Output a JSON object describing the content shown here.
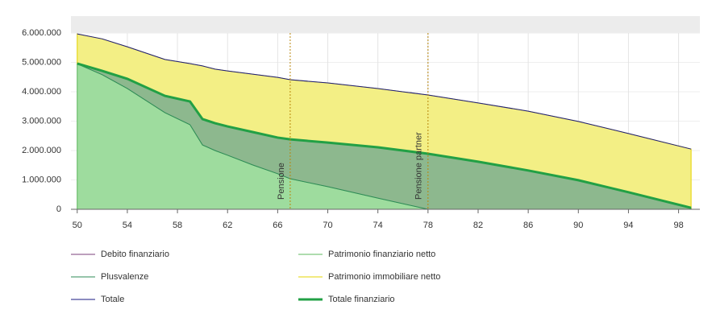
{
  "chart_data": {
    "type": "area",
    "x": [
      50,
      52,
      54,
      57,
      59,
      60,
      61,
      62,
      64,
      66,
      67,
      70,
      74,
      78,
      82,
      86,
      90,
      94,
      99
    ],
    "xlim": [
      49.5,
      99.7
    ],
    "xticks": [
      50,
      54,
      58,
      62,
      66,
      70,
      74,
      78,
      82,
      86,
      90,
      94,
      98
    ],
    "ylim": [
      0,
      6000000
    ],
    "yticks": [
      0,
      {
        "value": 1000000,
        "label": "1.000.000"
      },
      {
        "value": 2000000,
        "label": "2.000.000"
      },
      {
        "value": 3000000,
        "label": "3.000.000"
      },
      {
        "value": 4000000,
        "label": "4.000.000"
      },
      {
        "value": 5000000,
        "label": "5.000.000"
      },
      {
        "value": 6000000,
        "label": "6.000.000"
      }
    ],
    "grid": true,
    "series": [
      {
        "name": "Debito finanziario",
        "color": "#7b3f7b",
        "kind": "line",
        "width": 1,
        "values": [
          0,
          0,
          0,
          0,
          0,
          0,
          0,
          0,
          0,
          0,
          0,
          0,
          0,
          0,
          0,
          0,
          0,
          0,
          0
        ]
      },
      {
        "name": "Patrimonio finanziario netto",
        "color": "#5cb85c",
        "fill": "#9edc9e",
        "kind": "area",
        "width": 1,
        "values": [
          4950000,
          4580000,
          4110000,
          3290000,
          2880000,
          2190000,
          2000000,
          1840000,
          1510000,
          1210000,
          1040000,
          770000,
          380000,
          0,
          0,
          0,
          0,
          0,
          0
        ]
      },
      {
        "name": "Plusvalenze",
        "color": "#2e8b57",
        "fill": "#8db88e",
        "kind": "area",
        "width": 1,
        "values": [
          10000,
          130000,
          330000,
          570000,
          790000,
          880000,
          930000,
          980000,
          1120000,
          1230000,
          1340000,
          1500000,
          1730000,
          1890000,
          1620000,
          1320000,
          990000,
          580000,
          50000
        ]
      },
      {
        "name": "Patrimonio immobiliare netto",
        "color": "#e6d400",
        "fill": "#f3ef85",
        "kind": "area",
        "width": 1,
        "values": [
          1010000,
          1090000,
          1090000,
          1240000,
          1290000,
          1810000,
          1840000,
          1890000,
          1970000,
          2050000,
          2030000,
          2030000,
          2000000,
          2000000,
          2000000,
          2020000,
          2000000,
          2000000,
          2000000
        ]
      },
      {
        "name": "Totale",
        "color": "#1a1a80",
        "kind": "line",
        "width": 1,
        "values": [
          5970000,
          5800000,
          5530000,
          5100000,
          4960000,
          4880000,
          4770000,
          4710000,
          4600000,
          4490000,
          4410000,
          4300000,
          4110000,
          3890000,
          3620000,
          3340000,
          2990000,
          2580000,
          2050000
        ]
      },
      {
        "name": "Totale finanziario",
        "color": "#22a045",
        "kind": "line",
        "width": 3,
        "values": [
          4960000,
          4710000,
          4440000,
          3860000,
          3670000,
          3070000,
          2930000,
          2820000,
          2630000,
          2440000,
          2380000,
          2270000,
          2110000,
          1890000,
          1620000,
          1320000,
          990000,
          580000,
          50000
        ]
      }
    ],
    "annotations": [
      {
        "x": 67,
        "label": "Pensione"
      },
      {
        "x": 78,
        "label": "Pensione partner"
      }
    ]
  }
}
